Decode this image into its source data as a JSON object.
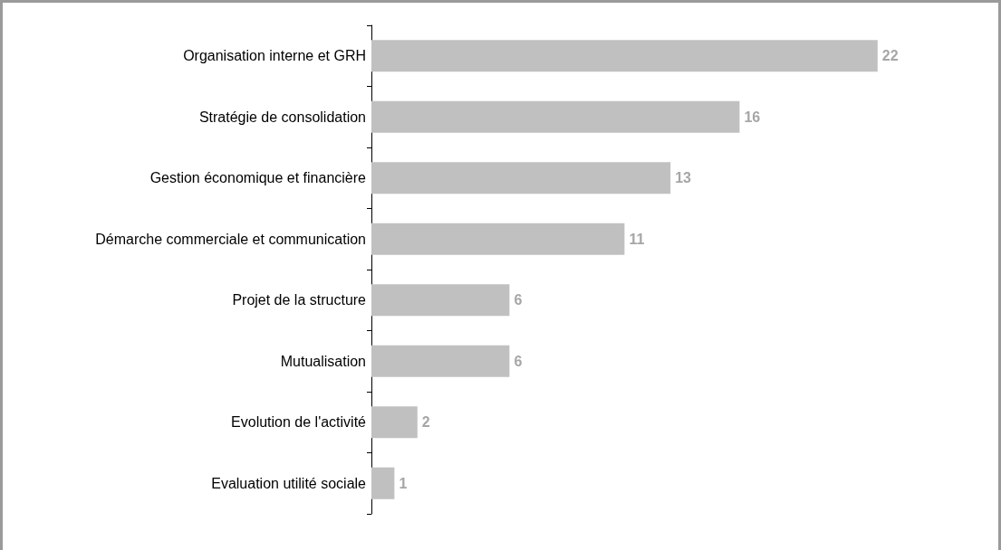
{
  "chart_data": {
    "type": "bar",
    "orientation": "horizontal",
    "categories": [
      "Organisation interne et GRH",
      "Stratégie de consolidation",
      "Gestion économique et financière",
      "Démarche commerciale et communication",
      "Projet de la structure",
      "Mutualisation",
      "Evolution de l'activité",
      "Evaluation utilité sociale"
    ],
    "values": [
      22,
      16,
      13,
      11,
      6,
      6,
      2,
      1
    ],
    "color": "#c0c0c0",
    "data_labels": true,
    "grid": false
  }
}
